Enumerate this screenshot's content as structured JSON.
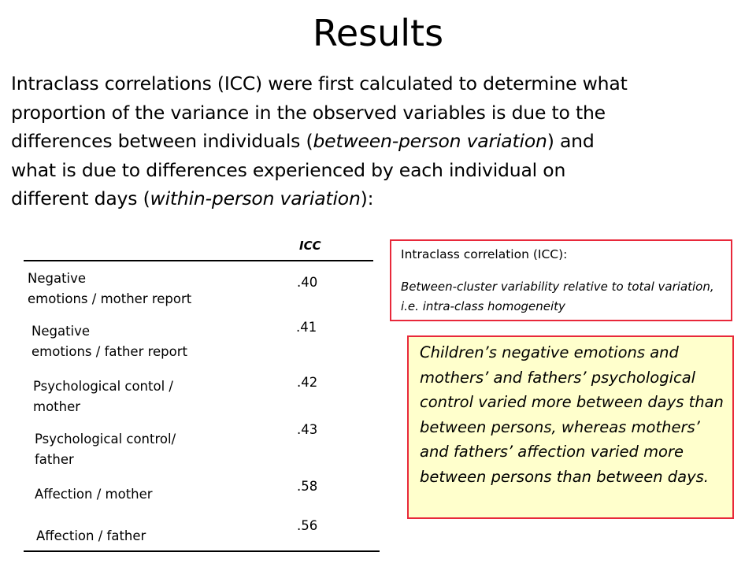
{
  "slide": {
    "title": "Results",
    "intro_lines": [
      "Intraclass correlations (ICC) were first calculated to determine what",
      "proportion of the variance in the observed variables is due to the",
      "differences between individuals (",
      "between-person variation",
      ") and",
      "what is due to differences experienced by each individual on",
      "different days (",
      "within-person variation",
      "):"
    ]
  },
  "table": {
    "header": "ICC",
    "rows": [
      {
        "label_lines": [
          "Negative",
          "emotions / mother report"
        ],
        "value": ".40"
      },
      {
        "label_lines": [
          "Negative",
          "emotions / father report"
        ],
        "value": ".41"
      },
      {
        "label_lines": [
          "Psychological contol /",
          "mother"
        ],
        "value": ".42"
      },
      {
        "label_lines": [
          "Psychological control/",
          "father"
        ],
        "value": ".43"
      },
      {
        "label_lines": [
          "Affection / mother"
        ],
        "value": ".58"
      },
      {
        "label_lines": [
          "Affection / father"
        ],
        "value": ".56"
      }
    ]
  },
  "definition_box": {
    "title": "Intraclass correlation (ICC):",
    "body": "Between-cluster variability relative to total variation, i.e. intra-class homogeneity",
    "border_color": "#e8283a"
  },
  "note_box": {
    "text": "Children’s negative emotions and mothers’ and fathers’ psychological control varied more between days than between persons, whereas mothers’ and fathers’ affection varied more between persons than between days.",
    "background": "#ffffcc",
    "border_color": "#e8283a"
  }
}
